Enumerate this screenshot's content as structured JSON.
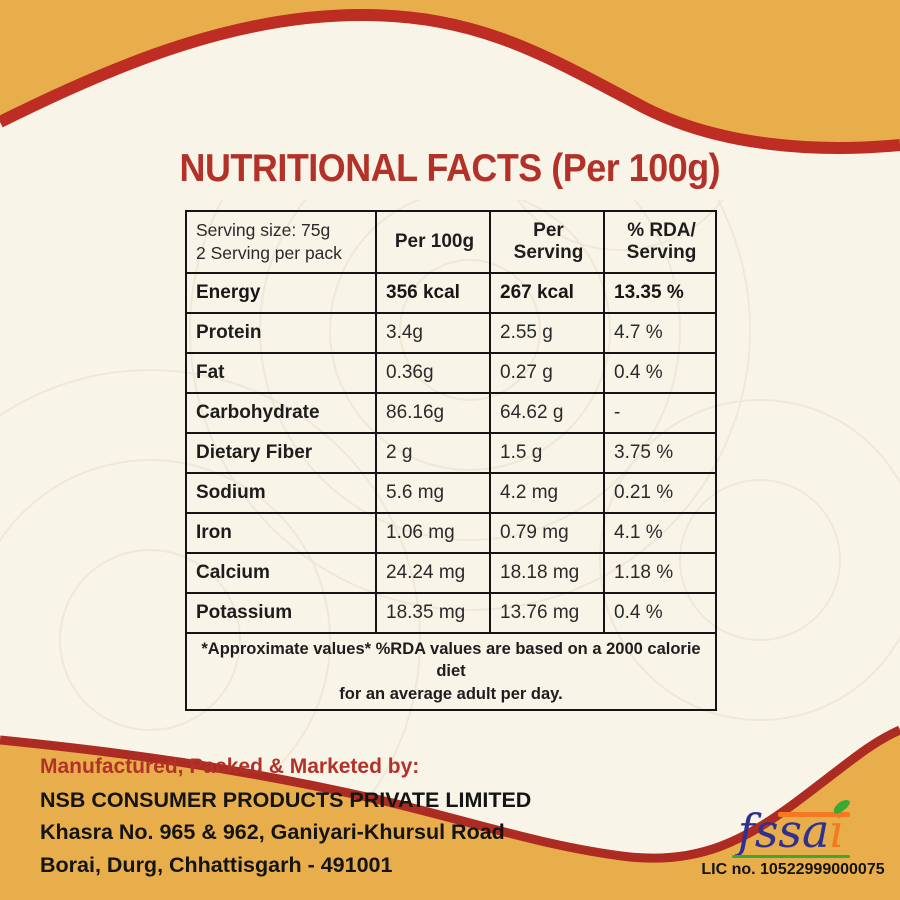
{
  "title": "NUTRITIONAL FACTS (Per 100g)",
  "colors": {
    "gold": "#E9AE4C",
    "cream": "#F9F4E8",
    "wave_red_top": "#BE2D24",
    "wave_red_bottom": "#AC2B22",
    "title_red": "#B23128",
    "table_border": "#141414",
    "fssai_blue": "#2E3192",
    "fssai_orange": "#F47920",
    "fssai_green": "#39A935"
  },
  "table": {
    "serving_info": "Serving size: 75g\n2 Serving per pack",
    "col_per_100g": "Per 100g",
    "col_per_serving": "Per\nServing",
    "col_rda": "% RDA/\nServing",
    "rows": [
      {
        "label": "Energy",
        "per_100g": "356 kcal",
        "per_serving": "267 kcal",
        "rda": "13.35 %",
        "emphasis": true
      },
      {
        "label": "Protein",
        "per_100g": "3.4g",
        "per_serving": "2.55 g",
        "rda": "4.7 %"
      },
      {
        "label": "Fat",
        "per_100g": "0.36g",
        "per_serving": "0.27 g",
        "rda": "0.4 %"
      },
      {
        "label": "Carbohydrate",
        "per_100g": "86.16g",
        "per_serving": "64.62 g",
        "rda": "-"
      },
      {
        "label": "Dietary Fiber",
        "per_100g": "2 g",
        "per_serving": "1.5 g",
        "rda": "3.75 %"
      },
      {
        "label": "Sodium",
        "per_100g": "5.6 mg",
        "per_serving": "4.2 mg",
        "rda": "0.21 %"
      },
      {
        "label": "Iron",
        "per_100g": "1.06 mg",
        "per_serving": "0.79 mg",
        "rda": "4.1 %"
      },
      {
        "label": "Calcium",
        "per_100g": "24.24 mg",
        "per_serving": "18.18 mg",
        "rda": "1.18 %"
      },
      {
        "label": "Potassium",
        "per_100g": "18.35 mg",
        "per_serving": "13.76 mg",
        "rda": "0.4 %"
      }
    ],
    "footnote": "*Approximate values*  %RDA values are based on a 2000 calorie diet\nfor an average adult per day."
  },
  "footer": {
    "heading": "Manufactured, Packed & Marketed by:",
    "company": "NSB CONSUMER PRODUCTS PRIVATE LIMITED",
    "address_line1": "Khasra No. 965 & 962, Ganiyari-Khursul Road",
    "address_line2": "Borai, Durg, Chhattisgarh - 491001",
    "fssai_blue_text": "fssa",
    "fssai_orange_text": "i",
    "license": "LIC no. 10522999000075"
  }
}
